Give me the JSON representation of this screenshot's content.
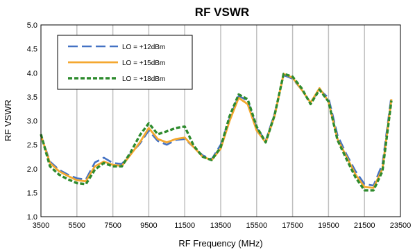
{
  "chart_data": {
    "type": "line",
    "title": "RF VSWR",
    "xlabel": "RF Frequency (MHz)",
    "ylabel": "RF VSWR",
    "xlim": [
      3500,
      23500
    ],
    "ylim": [
      1.0,
      5.0
    ],
    "x_ticks": [
      3500,
      5500,
      7500,
      9500,
      11500,
      13500,
      15500,
      17500,
      19500,
      21500,
      23500
    ],
    "y_ticks": [
      1.0,
      1.5,
      2.0,
      2.5,
      3.0,
      3.5,
      4.0,
      4.5,
      5.0
    ],
    "y_tick_labels": [
      "1.0",
      "1.5",
      "2.0",
      "2.5",
      "3.0",
      "3.5",
      "4.0",
      "4.5",
      "5.0"
    ],
    "grid": "vertical",
    "legend_position": "top-left",
    "series": [
      {
        "name": "LO = +12dBm",
        "color": "#4472C4",
        "dash": "long-dash",
        "x": [
          3500,
          4000,
          4500,
          5000,
          5500,
          6000,
          6500,
          7000,
          7500,
          8000,
          8500,
          9000,
          9500,
          10000,
          10500,
          11000,
          11500,
          12000,
          12500,
          13000,
          13500,
          14000,
          14500,
          15000,
          15500,
          16000,
          16500,
          17000,
          17500,
          18000,
          18500,
          19000,
          19500,
          20000,
          20500,
          21000,
          21500,
          22000,
          22500,
          23000
        ],
        "values": [
          2.7,
          2.15,
          1.98,
          1.88,
          1.8,
          1.78,
          2.13,
          2.23,
          2.12,
          2.1,
          2.32,
          2.52,
          2.8,
          2.58,
          2.5,
          2.6,
          2.62,
          2.45,
          2.28,
          2.2,
          2.5,
          3.05,
          3.52,
          3.42,
          2.85,
          2.58,
          3.15,
          3.95,
          3.88,
          3.65,
          3.38,
          3.65,
          3.48,
          2.7,
          2.3,
          1.95,
          1.68,
          1.65,
          2.1,
          3.52
        ]
      },
      {
        "name": "LO = +15dBm",
        "color": "#F4A830",
        "dash": "solid",
        "x": [
          3500,
          4000,
          4500,
          5000,
          5500,
          6000,
          6500,
          7000,
          7500,
          8000,
          8500,
          9000,
          9500,
          10000,
          10500,
          11000,
          11500,
          12000,
          12500,
          13000,
          13500,
          14000,
          14500,
          15000,
          15500,
          16000,
          16500,
          17000,
          17500,
          18000,
          18500,
          19000,
          19500,
          20000,
          20500,
          21000,
          21500,
          22000,
          22500,
          23000
        ],
        "values": [
          2.7,
          2.12,
          1.95,
          1.85,
          1.76,
          1.74,
          2.05,
          2.15,
          2.08,
          2.06,
          2.3,
          2.55,
          2.85,
          2.62,
          2.55,
          2.62,
          2.65,
          2.45,
          2.25,
          2.18,
          2.42,
          3.0,
          3.48,
          3.35,
          2.8,
          2.55,
          3.1,
          3.98,
          3.9,
          3.65,
          3.38,
          3.68,
          3.4,
          2.62,
          2.25,
          1.88,
          1.62,
          1.6,
          2.0,
          3.45
        ]
      },
      {
        "name": "LO = +18dBm",
        "color": "#2E8B2E",
        "dash": "short-dash",
        "x": [
          3500,
          4000,
          4500,
          5000,
          5500,
          6000,
          6500,
          7000,
          7500,
          8000,
          8500,
          9000,
          9500,
          10000,
          10500,
          11000,
          11500,
          12000,
          12500,
          13000,
          13500,
          14000,
          14500,
          15000,
          15500,
          16000,
          16500,
          17000,
          17500,
          18000,
          18500,
          19000,
          19500,
          20000,
          20500,
          21000,
          21500,
          22000,
          22500,
          23000
        ],
        "values": [
          2.72,
          2.05,
          1.88,
          1.78,
          1.7,
          1.68,
          1.98,
          2.12,
          2.05,
          2.05,
          2.35,
          2.7,
          2.95,
          2.72,
          2.78,
          2.85,
          2.88,
          2.48,
          2.25,
          2.18,
          2.45,
          3.1,
          3.55,
          3.45,
          2.88,
          2.55,
          3.12,
          3.98,
          3.92,
          3.68,
          3.35,
          3.65,
          3.4,
          2.6,
          2.2,
          1.82,
          1.55,
          1.55,
          1.95,
          3.42
        ]
      }
    ]
  }
}
